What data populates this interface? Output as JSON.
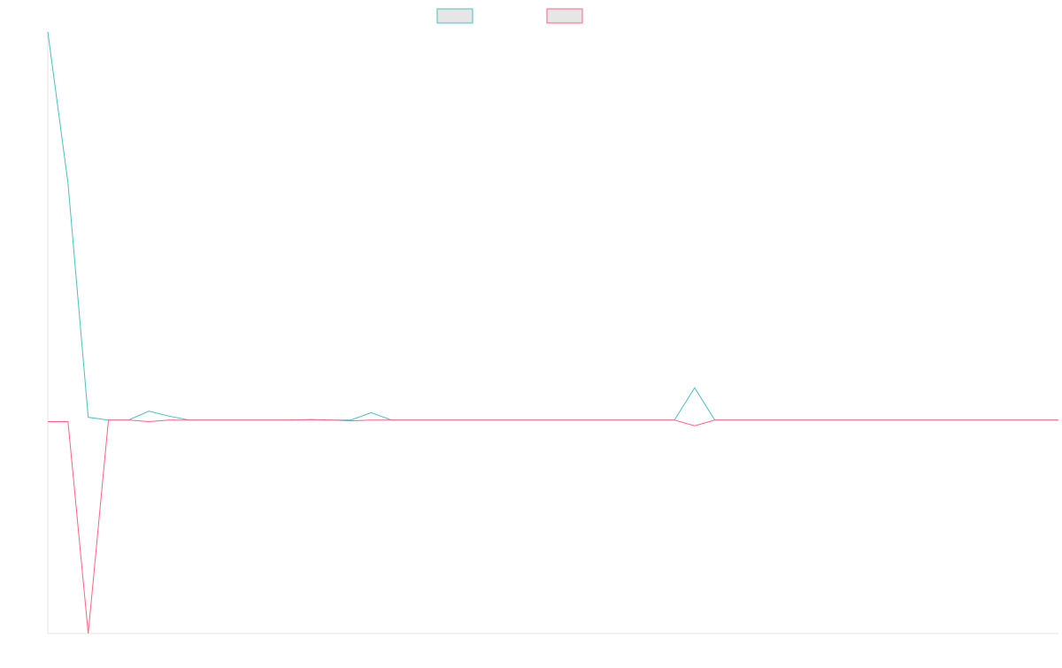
{
  "chart_data": {
    "type": "line",
    "title": "",
    "xlabel": "",
    "ylabel": "",
    "grid": false,
    "legend_position": "top-center",
    "ylim": [
      -0.55,
      1.0
    ],
    "x": [
      0,
      1,
      2,
      3,
      4,
      5,
      6,
      7,
      8,
      9,
      10,
      11,
      12,
      13,
      14,
      15,
      16,
      17,
      18,
      19,
      20,
      21,
      22,
      23,
      24,
      25,
      26,
      27,
      28,
      29,
      30,
      31,
      32,
      33,
      34,
      35,
      36,
      37,
      38,
      39,
      40,
      41,
      42,
      43,
      44,
      45,
      46,
      47,
      48,
      49,
      50
    ],
    "series": [
      {
        "name": "",
        "color": "#4bc0c0",
        "values": [
          1.0,
          0.61,
          0.007,
          0.0,
          0.0,
          0.023,
          0.01,
          0.0,
          0.0,
          0.0,
          0.0,
          0.0,
          0.0,
          0.001,
          0.0,
          0.0,
          0.019,
          0.0,
          0.0,
          0.0,
          0.0,
          0.0,
          0.0,
          0.0,
          0.0,
          0.0,
          0.0,
          0.0,
          0.0,
          0.0,
          0.0,
          0.0,
          0.083,
          0.0,
          0.0,
          0.0,
          0.0,
          0.0,
          0.0,
          0.0,
          0.0,
          0.0,
          0.0,
          0.0,
          0.0,
          0.0,
          0.0,
          0.0,
          0.0,
          0.0,
          0.0
        ]
      },
      {
        "name": "",
        "color": "#ff6384",
        "values": [
          -0.004,
          -0.004,
          -0.55,
          0.0,
          0.0,
          -0.004,
          0.0,
          0.0,
          0.0,
          0.0,
          0.0,
          0.0,
          0.0,
          0.001,
          0.0,
          -0.002,
          0.0,
          0.0,
          0.0,
          0.0,
          0.0,
          0.0,
          0.0,
          0.0,
          0.0,
          0.0,
          0.0,
          0.0,
          0.0,
          0.0,
          0.0,
          0.0,
          -0.015,
          0.0,
          0.0,
          0.0,
          0.0,
          0.0,
          0.0,
          0.0,
          0.0,
          0.0,
          0.0,
          0.0,
          0.0,
          0.0,
          0.0,
          0.0,
          0.0,
          0.0,
          0.0
        ]
      }
    ]
  }
}
